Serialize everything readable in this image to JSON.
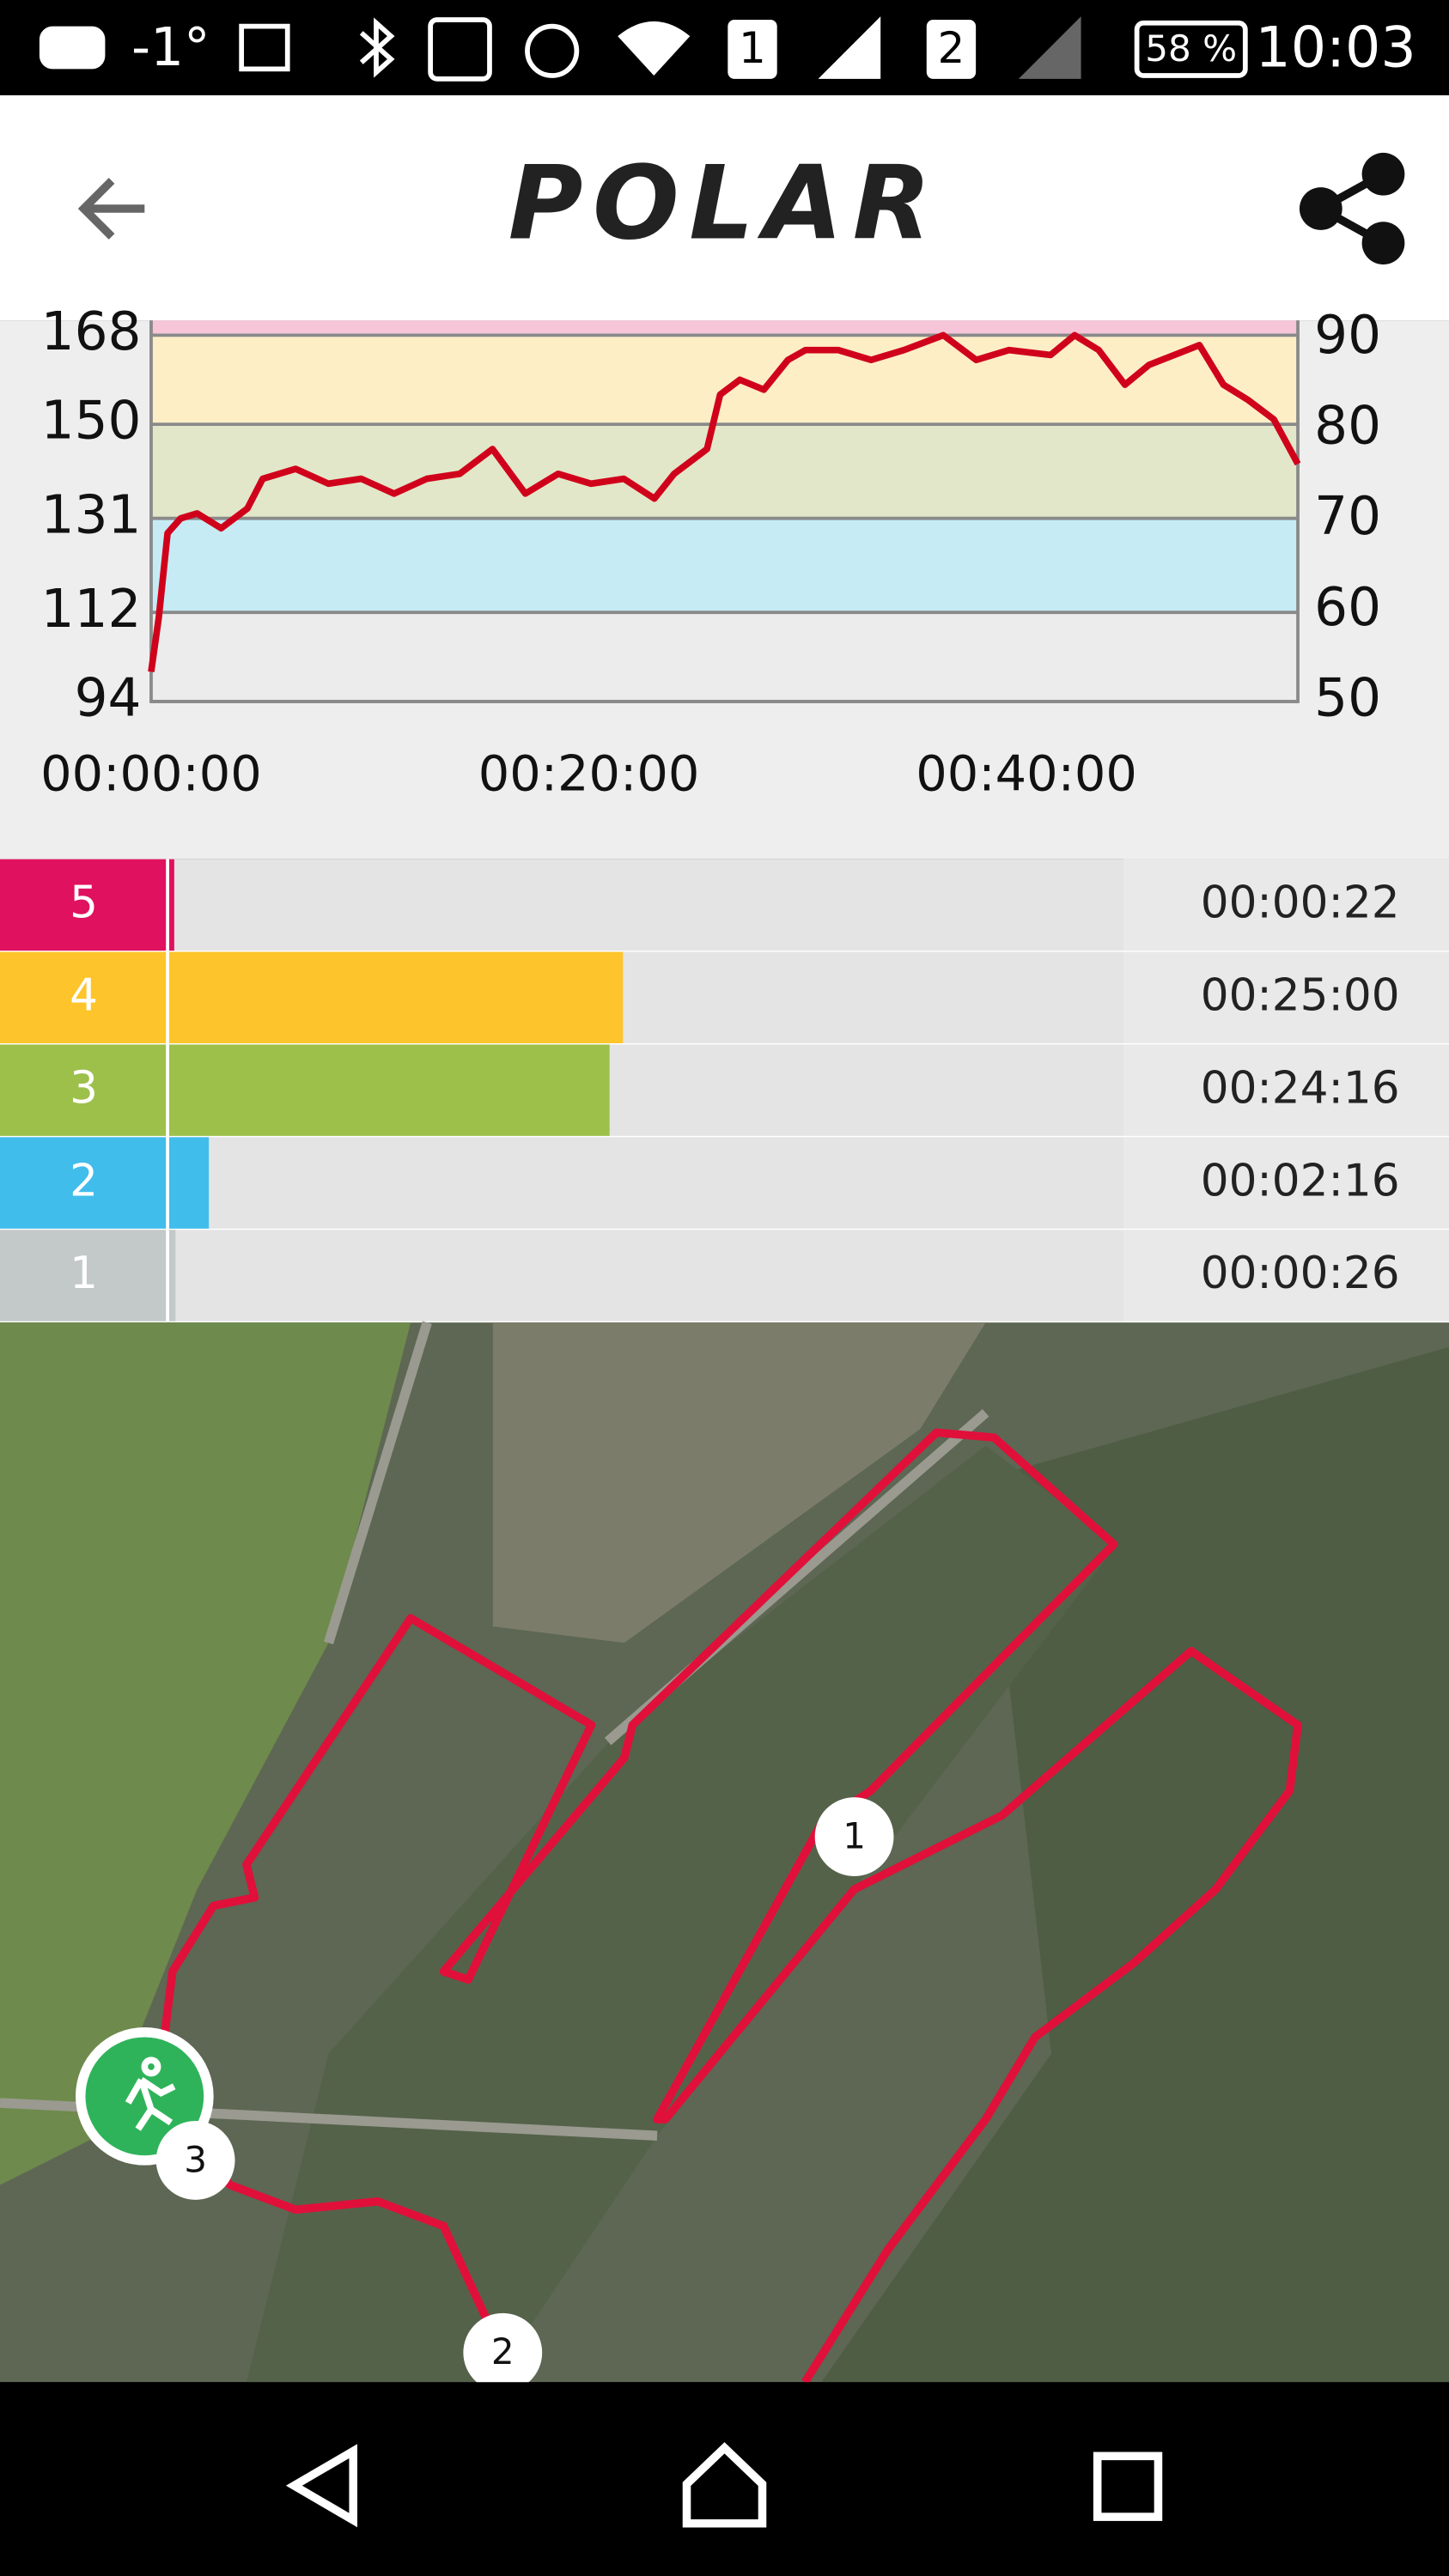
{
  "status_bar": {
    "temperature": "-1°",
    "sim1": "1",
    "sim2": "2",
    "battery": "58 %",
    "time": "10:03"
  },
  "header": {
    "logo": "POLAR"
  },
  "chart_data": {
    "type": "line",
    "color": "#d0021b",
    "x": [
      0,
      0.35,
      0.75,
      1.35,
      2.1,
      3.2,
      4.4,
      5.1,
      6.6,
      8.1,
      9.6,
      11.1,
      12.6,
      14.1,
      15.6,
      17.1,
      18.6,
      20.1,
      21.6,
      23,
      23.9,
      25.4,
      26,
      26.9,
      28,
      29.1,
      29.9,
      31.4,
      32.9,
      34.4,
      36.2,
      37.7,
      39.2,
      41.1,
      42.2,
      43.3,
      44.5,
      45.6,
      47.9,
      49,
      50.1,
      51.3,
      52.4
    ],
    "values": [
      100,
      111,
      128,
      131,
      132,
      129,
      133,
      139,
      141,
      138,
      139,
      136,
      139,
      140,
      145,
      136,
      140,
      138,
      139,
      135,
      140,
      145,
      156,
      159,
      157,
      163,
      165,
      165,
      163,
      165,
      168,
      163,
      165,
      164,
      168,
      165,
      158,
      162,
      166,
      158,
      155,
      151,
      142
    ],
    "xlim": [
      0,
      52.4
    ],
    "xticks": [
      {
        "value": 0,
        "label": "00:00:00"
      },
      {
        "value": 20,
        "label": "00:20:00"
      },
      {
        "value": 40,
        "label": "00:40:00"
      }
    ],
    "ylim": [
      94,
      171
    ],
    "yticks": [
      94,
      112,
      131,
      150,
      168
    ],
    "y2lim": [
      50,
      92
    ],
    "y2ticks": [
      50,
      60,
      70,
      80,
      90
    ],
    "zone_colors": [
      "#ececec",
      "#c6ebf5",
      "#e2e7c9",
      "#fdeec6",
      "#f6c5d8"
    ]
  },
  "zones": {
    "xlim": [
      0,
      3144
    ],
    "rows": [
      {
        "label": "5",
        "color": "#e0115f",
        "seconds": 22,
        "time": "00:00:22"
      },
      {
        "label": "4",
        "color": "#fdc52b",
        "seconds": 1500,
        "time": "00:25:00"
      },
      {
        "label": "3",
        "color": "#9dc04b",
        "seconds": 1456,
        "time": "00:24:16"
      },
      {
        "label": "2",
        "color": "#41bdec",
        "seconds": 136,
        "time": "00:02:16"
      },
      {
        "label": "1",
        "color": "#c3c9c9",
        "seconds": 26,
        "time": "00:00:26"
      }
    ]
  },
  "map": {
    "markers": [
      "1",
      "2",
      "3"
    ]
  }
}
